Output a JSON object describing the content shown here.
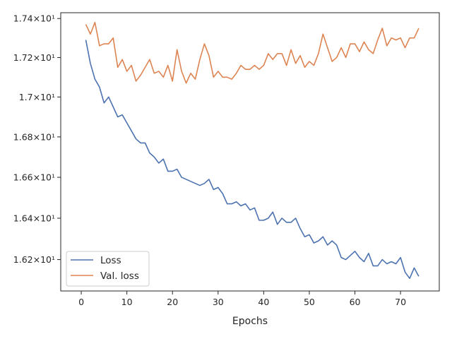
{
  "chart_data": {
    "type": "line",
    "title": "",
    "xlabel": "Epochs",
    "ylabel": "",
    "xlim": [
      -4.5,
      78.5
    ],
    "ylim": [
      16.05,
      17.43
    ],
    "x_ticks": [
      {
        "value": 0,
        "label": "0"
      },
      {
        "value": 10,
        "label": "10"
      },
      {
        "value": 20,
        "label": "20"
      },
      {
        "value": 30,
        "label": "30"
      },
      {
        "value": 40,
        "label": "40"
      },
      {
        "value": 50,
        "label": "50"
      },
      {
        "value": 60,
        "label": "60"
      },
      {
        "value": 70,
        "label": "70"
      }
    ],
    "y_ticks": [
      {
        "value": 16.2,
        "label": "1.62×10¹"
      },
      {
        "value": 16.4,
        "label": "1.64×10¹"
      },
      {
        "value": 16.6,
        "label": "1.66×10¹"
      },
      {
        "value": 16.8,
        "label": "1.68×10¹"
      },
      {
        "value": 17.0,
        "label": "1.7×10¹"
      },
      {
        "value": 17.2,
        "label": "1.72×10¹"
      },
      {
        "value": 17.4,
        "label": "1.74×10¹"
      }
    ],
    "y_scale": "log",
    "grid": false,
    "legend_position": "lower-left",
    "x": [
      1,
      2,
      3,
      4,
      5,
      6,
      7,
      8,
      9,
      10,
      11,
      12,
      13,
      14,
      15,
      16,
      17,
      18,
      19,
      20,
      21,
      22,
      23,
      24,
      25,
      26,
      27,
      28,
      29,
      30,
      31,
      32,
      33,
      34,
      35,
      36,
      37,
      38,
      39,
      40,
      41,
      42,
      43,
      44,
      45,
      46,
      47,
      48,
      49,
      50,
      51,
      52,
      53,
      54,
      55,
      56,
      57,
      58,
      59,
      60,
      61,
      62,
      63,
      64,
      65,
      66,
      67,
      68,
      69,
      70,
      71,
      72,
      73,
      74
    ],
    "series": [
      {
        "name": "Loss",
        "color": "#4c72b0",
        "values": [
          17.29,
          17.17,
          17.09,
          17.05,
          16.97,
          17.0,
          16.95,
          16.9,
          16.91,
          16.87,
          16.83,
          16.79,
          16.77,
          16.77,
          16.72,
          16.7,
          16.67,
          16.69,
          16.63,
          16.63,
          16.64,
          16.6,
          16.59,
          16.58,
          16.57,
          16.56,
          16.57,
          16.59,
          16.54,
          16.55,
          16.52,
          16.47,
          16.47,
          16.48,
          16.46,
          16.47,
          16.44,
          16.45,
          16.39,
          16.39,
          16.4,
          16.43,
          16.37,
          16.4,
          16.38,
          16.38,
          16.4,
          16.35,
          16.31,
          16.32,
          16.28,
          16.29,
          16.31,
          16.27,
          16.29,
          16.27,
          16.21,
          16.2,
          16.22,
          16.24,
          16.21,
          16.19,
          16.23,
          16.17,
          16.17,
          16.2,
          16.18,
          16.19,
          16.18,
          16.21,
          16.14,
          16.11,
          16.16,
          16.12
        ]
      },
      {
        "name": "Val. loss",
        "color": "#dd8452",
        "values": [
          17.37,
          17.32,
          17.38,
          17.26,
          17.27,
          17.27,
          17.3,
          17.15,
          17.19,
          17.13,
          17.16,
          17.08,
          17.11,
          17.15,
          17.19,
          17.12,
          17.13,
          17.1,
          17.16,
          17.08,
          17.24,
          17.13,
          17.07,
          17.12,
          17.09,
          17.19,
          17.27,
          17.21,
          17.1,
          17.13,
          17.1,
          17.1,
          17.09,
          17.12,
          17.16,
          17.14,
          17.14,
          17.16,
          17.14,
          17.16,
          17.22,
          17.19,
          17.22,
          17.22,
          17.16,
          17.24,
          17.17,
          17.21,
          17.15,
          17.18,
          17.16,
          17.22,
          17.32,
          17.25,
          17.18,
          17.2,
          17.25,
          17.2,
          17.27,
          17.27,
          17.23,
          17.28,
          17.24,
          17.22,
          17.29,
          17.35,
          17.26,
          17.3,
          17.29,
          17.3,
          17.25,
          17.3,
          17.3,
          17.35
        ]
      }
    ]
  },
  "legend": {
    "items": [
      {
        "label": "Loss",
        "color": "#4c72b0"
      },
      {
        "label": "Val. loss",
        "color": "#dd8452"
      }
    ]
  }
}
